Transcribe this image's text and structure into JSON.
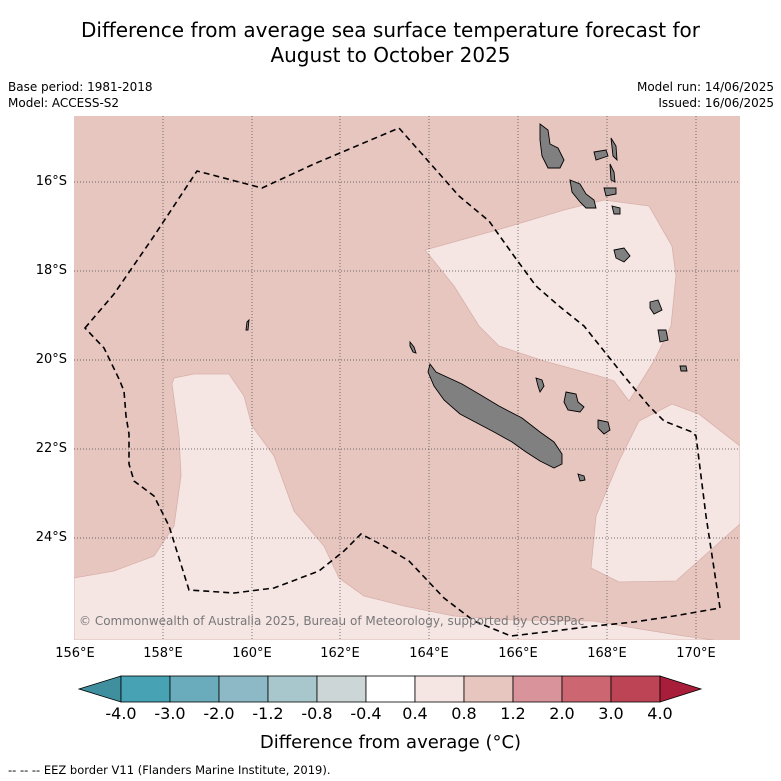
{
  "title_line1": "Difference from average sea surface temperature forecast for",
  "title_line2": "August to October 2025",
  "base_period": "Base period: 1981-2018",
  "model": "Model: ACCESS-S2",
  "model_run": "Model run: 14/06/2025",
  "issued": "Issued: 16/06/2025",
  "copyright": "© Commonwealth of Australia 2025, Bureau of Meteorology, supported by COSPPac",
  "lat_labels": [
    "16°S",
    "18°S",
    "20°S",
    "22°S",
    "24°S"
  ],
  "lon_labels": [
    "156°E",
    "158°E",
    "160°E",
    "162°E",
    "164°E",
    "166°E",
    "168°E",
    "170°E"
  ],
  "colorbar": {
    "title": "Difference from average (°C)",
    "ticks": [
      "-4.0",
      "-3.0",
      "-2.0",
      "-1.2",
      "-0.8",
      "-0.4",
      "0.4",
      "0.8",
      "1.2",
      "2.0",
      "3.0",
      "4.0"
    ],
    "colors": [
      "#3f8f9e",
      "#47a3b3",
      "#6aacbb",
      "#8cb9c5",
      "#a8c7cc",
      "#cdd6d7",
      "#ffffff",
      "#f5e6e4",
      "#e8c6c0",
      "#d9939a",
      "#cc6670",
      "#bd4455",
      "#a81d3a"
    ]
  },
  "footer": "-- -- -- EEZ border V11 (Flanders Marine Institute, 2019).",
  "map_colors": {
    "anomaly_0_4_to_0_8": "#f5e6e4",
    "anomaly_0_8_to_1_2": "#e8c6c0",
    "land": "#808080",
    "grid": "#333333"
  }
}
